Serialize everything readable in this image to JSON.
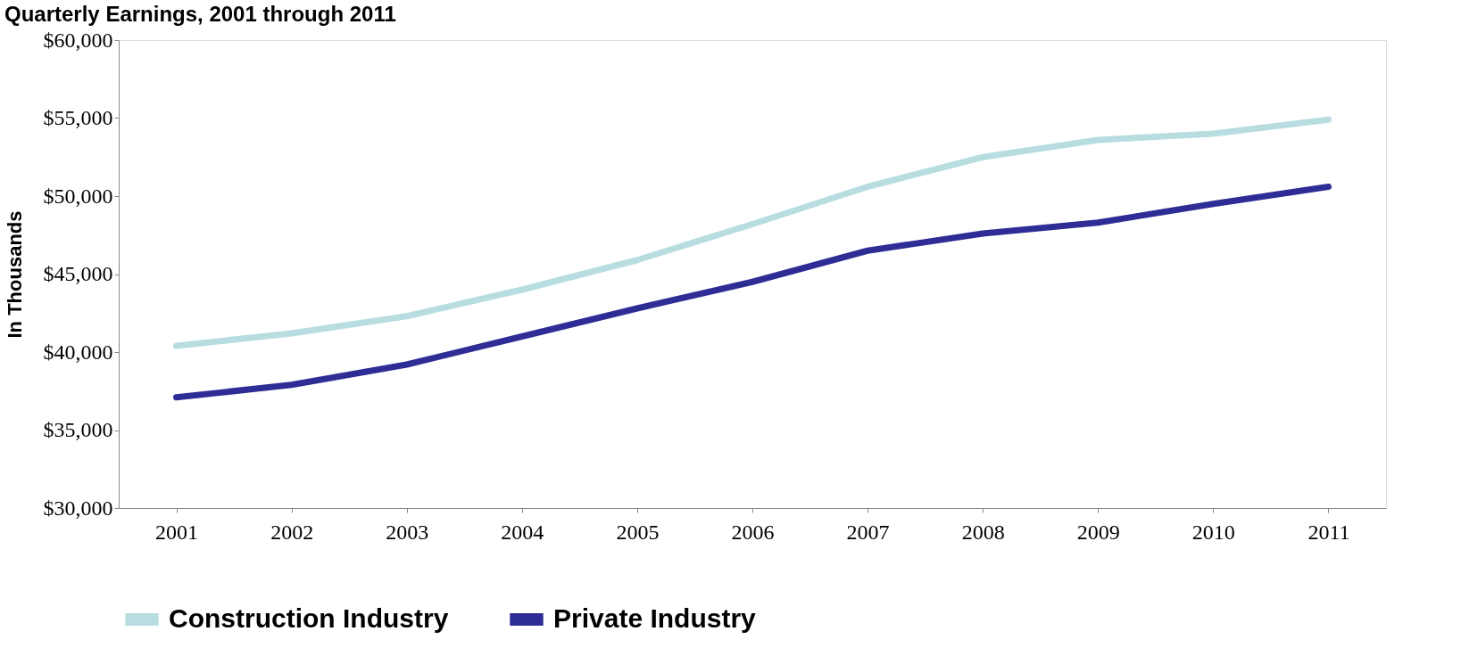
{
  "chart_data": {
    "type": "line",
    "title": "Quarterly Earnings, 2001 through 2011",
    "ylabel": "In Thousands",
    "categories": [
      "2001",
      "2002",
      "2003",
      "2004",
      "2005",
      "2006",
      "2007",
      "2008",
      "2009",
      "2010",
      "2011"
    ],
    "series": [
      {
        "name": "Construction Industry",
        "color": "#b7dde0",
        "values": [
          40400,
          41200,
          42300,
          44000,
          45900,
          48200,
          50600,
          52500,
          53600,
          54000,
          54900
        ]
      },
      {
        "name": "Private Industry",
        "color": "#2e2d96",
        "values": [
          37100,
          37900,
          39200,
          41000,
          42800,
          44500,
          46500,
          47600,
          48300,
          49500,
          50600
        ]
      }
    ],
    "ylim": [
      30000,
      60000
    ],
    "yticks": [
      {
        "value": 30000,
        "label": "$30,000"
      },
      {
        "value": 35000,
        "label": "$35,000"
      },
      {
        "value": 40000,
        "label": "$40,000"
      },
      {
        "value": 45000,
        "label": "$45,000"
      },
      {
        "value": 50000,
        "label": "$50,000"
      },
      {
        "value": 55000,
        "label": "$55,000"
      },
      {
        "value": 60000,
        "label": "$60,000"
      }
    ],
    "grid": false,
    "legend": "bottom",
    "marker": "none",
    "line_style": "solid"
  }
}
